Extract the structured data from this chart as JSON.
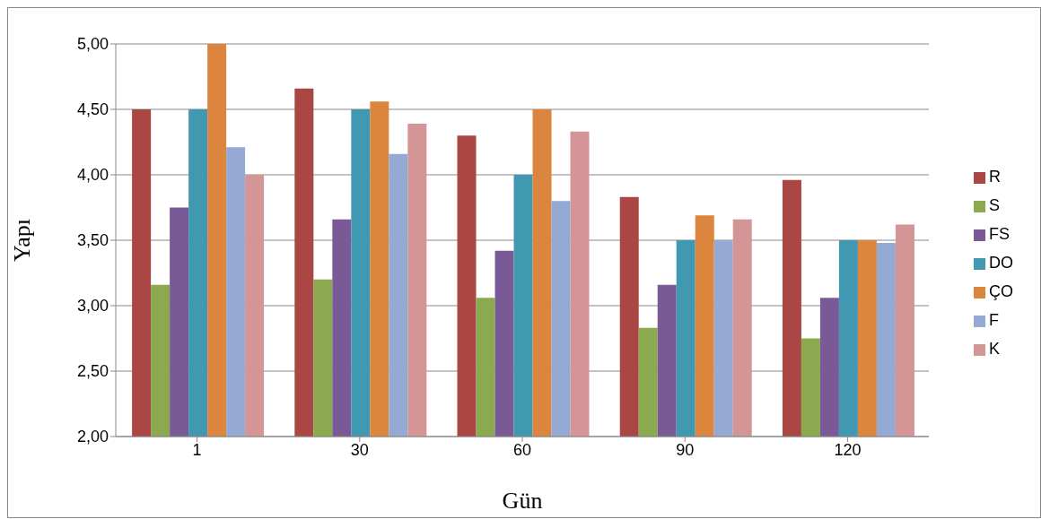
{
  "chart_data": {
    "type": "bar",
    "xlabel": "Gün",
    "ylabel": "Yapı",
    "categories": [
      "1",
      "30",
      "60",
      "90",
      "120"
    ],
    "series": [
      {
        "name": "R",
        "color": "#aa4643",
        "values": [
          4.5,
          4.66,
          4.3,
          3.83,
          3.96
        ]
      },
      {
        "name": "S",
        "color": "#8ba94f",
        "values": [
          3.16,
          3.2,
          3.06,
          2.83,
          2.75
        ]
      },
      {
        "name": "FS",
        "color": "#7a5a96",
        "values": [
          3.75,
          3.66,
          3.42,
          3.16,
          3.06
        ]
      },
      {
        "name": "DO",
        "color": "#4099b0",
        "values": [
          4.5,
          4.5,
          4.0,
          3.5,
          3.5
        ]
      },
      {
        "name": "ÇO",
        "color": "#dc853e",
        "values": [
          5.0,
          4.56,
          4.5,
          3.69,
          3.5
        ]
      },
      {
        "name": "F",
        "color": "#94a9d3",
        "values": [
          4.21,
          4.16,
          3.8,
          3.5,
          3.48
        ]
      },
      {
        "name": "K",
        "color": "#d39595",
        "values": [
          4.0,
          4.39,
          4.33,
          3.66,
          3.62
        ]
      }
    ],
    "ylim": [
      2,
      5
    ],
    "yticks": [
      {
        "value": 2,
        "label": "2,00"
      },
      {
        "value": 2.5,
        "label": "2,50"
      },
      {
        "value": 3,
        "label": "3,00"
      },
      {
        "value": 3.5,
        "label": "3,50"
      },
      {
        "value": 4,
        "label": "4,00"
      },
      {
        "value": 4.5,
        "label": "4,50"
      },
      {
        "value": 5,
        "label": "5,00"
      }
    ],
    "grid": "y",
    "legend": "right"
  }
}
